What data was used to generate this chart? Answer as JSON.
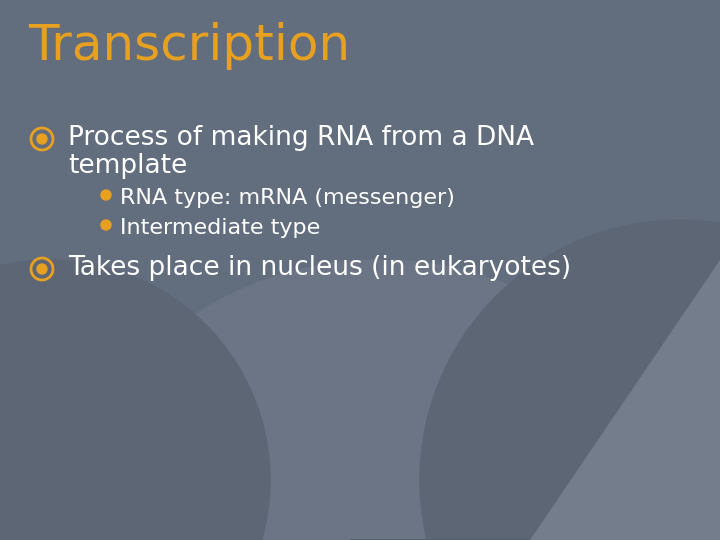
{
  "title": "Transcription",
  "title_color": "#e8a020",
  "title_fontsize": 36,
  "bg_color": "#626d7e",
  "text_color": "#ffffff",
  "bullet_color": "#e8a020",
  "main_bullet1_line1": "Process of making RNA from a DNA",
  "main_bullet1_line2": "template",
  "sub_bullet1": "RNA type: mRNA (messenger)",
  "sub_bullet2": "Intermediate type",
  "main_bullet2": "Takes place in nucleus (in eukaryotes)",
  "main_fontsize": 19,
  "sub_fontsize": 16,
  "circle_colors": [
    "#5a6473",
    "#545f6e",
    "#4e5a6a",
    "#4a5568"
  ],
  "fig_width": 7.2,
  "fig_height": 5.4,
  "dpi": 100
}
